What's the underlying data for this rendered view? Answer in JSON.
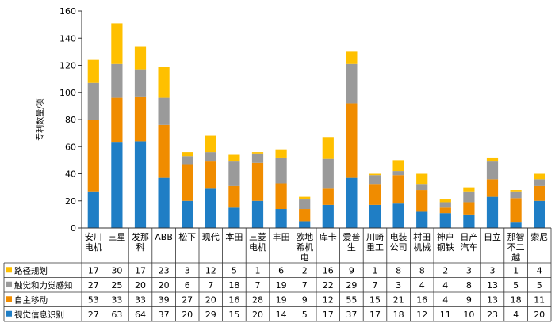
{
  "chart_data": {
    "type": "bar",
    "stacked": true,
    "ylabel": "专利数量/项",
    "ylim": [
      0,
      160
    ],
    "yticks": [
      0,
      20,
      40,
      60,
      80,
      100,
      120,
      140,
      160
    ],
    "categories": [
      "安川\n电机",
      "三星",
      "发那\n科",
      "ABB",
      "松下",
      "现代",
      "本田",
      "三菱\n电机",
      "丰田",
      "欧地\n希机\n电",
      "库卡",
      "爱普\n生",
      "川崎\n重工",
      "电装\n公司",
      "村田\n机械",
      "神户\n钢铁",
      "日产\n汽车",
      "日立",
      "那智\n不二\n越",
      "索尼"
    ],
    "series": [
      {
        "name": "视觉信息识别",
        "color": "#1f7ec5",
        "values": [
          27,
          63,
          64,
          37,
          20,
          29,
          15,
          20,
          14,
          5,
          17,
          37,
          17,
          18,
          12,
          11,
          10,
          23,
          4,
          20
        ]
      },
      {
        "name": "自主移动",
        "color": "#f08c00",
        "values": [
          53,
          33,
          33,
          39,
          27,
          20,
          16,
          28,
          19,
          9,
          12,
          55,
          15,
          21,
          16,
          4,
          9,
          13,
          18,
          11
        ]
      },
      {
        "name": "触觉和力觉感知",
        "color": "#9a9a9a",
        "values": [
          27,
          25,
          20,
          20,
          6,
          7,
          18,
          7,
          19,
          7,
          22,
          29,
          7,
          3,
          4,
          4,
          8,
          13,
          5,
          5
        ]
      },
      {
        "name": "路径规划",
        "color": "#ffc000",
        "values": [
          17,
          30,
          17,
          23,
          3,
          12,
          5,
          1,
          6,
          2,
          16,
          9,
          1,
          8,
          8,
          2,
          3,
          3,
          1,
          4
        ]
      }
    ],
    "legend": "table-below",
    "grid": false
  }
}
